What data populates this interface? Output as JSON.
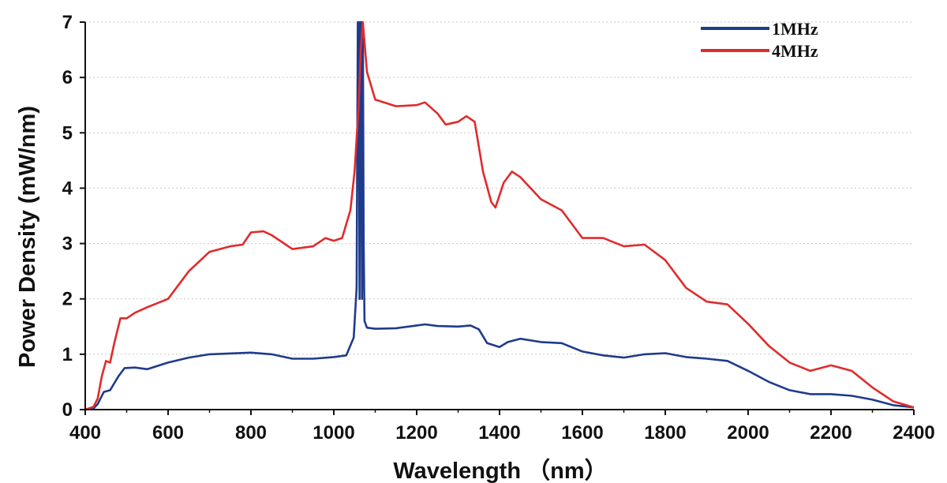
{
  "chart_data": {
    "type": "line",
    "title": "",
    "xlabel": "Wavelength （nm）",
    "ylabel": "Power Density (mW/nm)",
    "xlim": [
      400,
      2400
    ],
    "ylim": [
      0,
      7
    ],
    "xticks": [
      400,
      600,
      800,
      1000,
      1200,
      1400,
      1600,
      1800,
      2000,
      2200,
      2400
    ],
    "yticks": [
      0,
      1,
      2,
      3,
      4,
      5,
      6,
      7
    ],
    "grid": "horizontal-dotted",
    "legend_position": "top-right",
    "series": [
      {
        "name": "1MHz",
        "color": "#1f3b8c",
        "points": [
          [
            400,
            0
          ],
          [
            420,
            0.02
          ],
          [
            430,
            0.1
          ],
          [
            445,
            0.32
          ],
          [
            460,
            0.35
          ],
          [
            480,
            0.6
          ],
          [
            495,
            0.75
          ],
          [
            520,
            0.76
          ],
          [
            550,
            0.73
          ],
          [
            600,
            0.85
          ],
          [
            650,
            0.94
          ],
          [
            700,
            1.0
          ],
          [
            800,
            1.03
          ],
          [
            850,
            1.0
          ],
          [
            900,
            0.92
          ],
          [
            950,
            0.92
          ],
          [
            1000,
            0.95
          ],
          [
            1030,
            0.98
          ],
          [
            1048,
            1.3
          ],
          [
            1055,
            2.2
          ],
          [
            1058,
            7
          ],
          [
            1060,
            7
          ],
          [
            1062,
            2.0
          ],
          [
            1064,
            7
          ],
          [
            1066,
            7
          ],
          [
            1068,
            2.0
          ],
          [
            1070,
            7
          ],
          [
            1072,
            3.0
          ],
          [
            1074,
            1.6
          ],
          [
            1080,
            1.48
          ],
          [
            1100,
            1.46
          ],
          [
            1150,
            1.47
          ],
          [
            1200,
            1.52
          ],
          [
            1220,
            1.54
          ],
          [
            1250,
            1.51
          ],
          [
            1300,
            1.5
          ],
          [
            1330,
            1.52
          ],
          [
            1350,
            1.45
          ],
          [
            1370,
            1.2
          ],
          [
            1400,
            1.13
          ],
          [
            1420,
            1.22
          ],
          [
            1450,
            1.28
          ],
          [
            1500,
            1.22
          ],
          [
            1550,
            1.2
          ],
          [
            1600,
            1.05
          ],
          [
            1650,
            0.98
          ],
          [
            1700,
            0.94
          ],
          [
            1750,
            1.0
          ],
          [
            1800,
            1.02
          ],
          [
            1850,
            0.95
          ],
          [
            1900,
            0.92
          ],
          [
            1950,
            0.88
          ],
          [
            2000,
            0.7
          ],
          [
            2050,
            0.5
          ],
          [
            2100,
            0.35
          ],
          [
            2150,
            0.28
          ],
          [
            2200,
            0.28
          ],
          [
            2250,
            0.25
          ],
          [
            2300,
            0.18
          ],
          [
            2350,
            0.08
          ],
          [
            2400,
            0.04
          ]
        ]
      },
      {
        "name": "4MHz",
        "color": "#e02b2b",
        "points": [
          [
            400,
            0
          ],
          [
            420,
            0.05
          ],
          [
            430,
            0.2
          ],
          [
            440,
            0.6
          ],
          [
            450,
            0.88
          ],
          [
            460,
            0.85
          ],
          [
            470,
            1.2
          ],
          [
            485,
            1.65
          ],
          [
            500,
            1.65
          ],
          [
            520,
            1.75
          ],
          [
            550,
            1.85
          ],
          [
            600,
            2.0
          ],
          [
            650,
            2.5
          ],
          [
            700,
            2.85
          ],
          [
            750,
            2.95
          ],
          [
            780,
            2.98
          ],
          [
            800,
            3.2
          ],
          [
            830,
            3.22
          ],
          [
            850,
            3.15
          ],
          [
            900,
            2.9
          ],
          [
            950,
            2.95
          ],
          [
            980,
            3.1
          ],
          [
            1000,
            3.05
          ],
          [
            1020,
            3.1
          ],
          [
            1040,
            3.6
          ],
          [
            1050,
            4.3
          ],
          [
            1060,
            5.5
          ],
          [
            1065,
            6.5
          ],
          [
            1070,
            7
          ],
          [
            1080,
            6.1
          ],
          [
            1100,
            5.6
          ],
          [
            1150,
            5.48
          ],
          [
            1200,
            5.5
          ],
          [
            1220,
            5.55
          ],
          [
            1250,
            5.35
          ],
          [
            1270,
            5.15
          ],
          [
            1300,
            5.2
          ],
          [
            1320,
            5.3
          ],
          [
            1340,
            5.2
          ],
          [
            1360,
            4.3
          ],
          [
            1380,
            3.75
          ],
          [
            1390,
            3.65
          ],
          [
            1410,
            4.1
          ],
          [
            1430,
            4.3
          ],
          [
            1450,
            4.2
          ],
          [
            1500,
            3.8
          ],
          [
            1550,
            3.6
          ],
          [
            1600,
            3.1
          ],
          [
            1650,
            3.1
          ],
          [
            1700,
            2.95
          ],
          [
            1750,
            2.98
          ],
          [
            1800,
            2.7
          ],
          [
            1850,
            2.2
          ],
          [
            1900,
            1.95
          ],
          [
            1950,
            1.9
          ],
          [
            2000,
            1.55
          ],
          [
            2050,
            1.15
          ],
          [
            2100,
            0.85
          ],
          [
            2150,
            0.7
          ],
          [
            2200,
            0.8
          ],
          [
            2250,
            0.7
          ],
          [
            2300,
            0.4
          ],
          [
            2350,
            0.15
          ],
          [
            2400,
            0.04
          ]
        ]
      }
    ]
  }
}
